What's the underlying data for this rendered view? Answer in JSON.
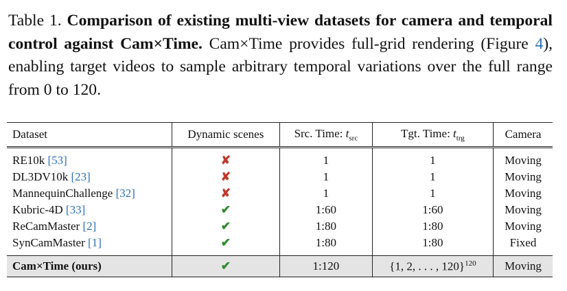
{
  "caption": {
    "label": "Table 1.",
    "bold": "Comparison of existing multi-view datasets for camera and temporal control against Cam×Time.",
    "text_parts": [
      "Cam×Time provides full-grid rendering (Figure ",
      "4",
      "), enabling target videos to sample arbitrary temporal variations over the full range from 0 to 120."
    ]
  },
  "table": {
    "header": [
      {
        "text": "Dataset"
      },
      {
        "text": "Dynamic scenes"
      },
      {
        "text": "Src. Time: ",
        "var": "t",
        "sub": "src"
      },
      {
        "text": "Tgt. Time: ",
        "var": "t",
        "sub": "trg"
      },
      {
        "text": "Camera"
      }
    ],
    "rows": [
      [
        {
          "name": "RE10k",
          "ref": "[53]"
        },
        {
          "mark": "✘",
          "ok": false
        },
        "1",
        "1",
        "Moving"
      ],
      [
        {
          "name": "DL3DV10k",
          "ref": "[23]"
        },
        {
          "mark": "✘",
          "ok": false
        },
        "1",
        "1",
        "Moving"
      ],
      [
        {
          "name": "MannequinChallenge",
          "ref": "[32]"
        },
        {
          "mark": "✘",
          "ok": false
        },
        "1",
        "1",
        "Moving"
      ],
      [
        {
          "name": "Kubric-4D",
          "ref": "[33]"
        },
        {
          "mark": "✔",
          "ok": true
        },
        "1:60",
        "1:60",
        "Moving"
      ],
      [
        {
          "name": "ReCamMaster",
          "ref": "[2]"
        },
        {
          "mark": "✔",
          "ok": true
        },
        "1:80",
        "1:80",
        "Moving"
      ],
      [
        {
          "name": "SynCamMaster",
          "ref": "[1]"
        },
        {
          "mark": "✔",
          "ok": true
        },
        "1:80",
        "1:80",
        "Fixed"
      ]
    ],
    "ours": [
      {
        "name": "Cam×Time (ours)"
      },
      {
        "mark": "✔",
        "ok": true
      },
      "1:120",
      {
        "base": "{1, 2, . . . , 120}",
        "sup": "120"
      },
      "Moving"
    ]
  }
}
